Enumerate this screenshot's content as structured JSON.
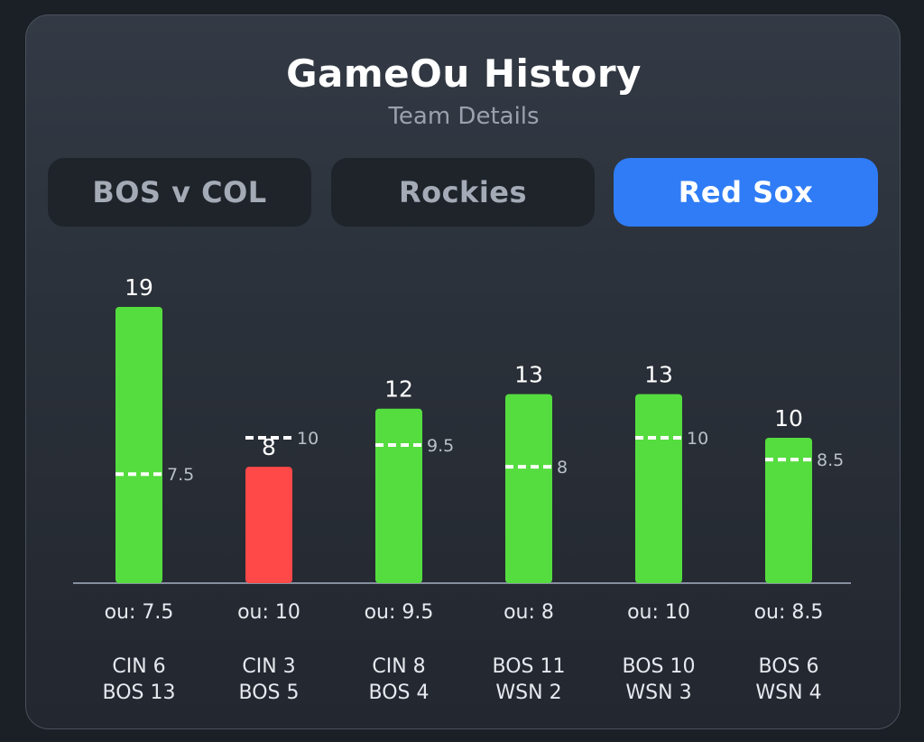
{
  "header": {
    "title": "GameOu History",
    "subtitle": "Team Details"
  },
  "tabs": [
    {
      "label": "BOS v COL",
      "active": false
    },
    {
      "label": "Rockies",
      "active": false
    },
    {
      "label": "Red Sox",
      "active": true
    }
  ],
  "colors": {
    "over": "#55dd3f",
    "under": "#ff4848",
    "active_tab": "#2f7cf6"
  },
  "chart_data": {
    "type": "bar",
    "categories": [
      "CIN 6 BOS 13",
      "CIN 3 BOS 5",
      "CIN 8 BOS 4",
      "BOS 11 WSN 2",
      "BOS 10 WSN 3",
      "BOS 6 WSN 4"
    ],
    "values": [
      19,
      8,
      12,
      13,
      13,
      10
    ],
    "ou_lines": [
      7.5,
      10,
      9.5,
      8,
      10,
      8.5
    ],
    "ou_labels": [
      "ou: 7.5",
      "ou: 10",
      "ou: 9.5",
      "ou: 8",
      "ou: 10",
      "ou: 8.5"
    ],
    "games": [
      [
        "CIN 6",
        "BOS 13"
      ],
      [
        "CIN 3",
        "BOS 5"
      ],
      [
        "CIN 8",
        "BOS 4"
      ],
      [
        "BOS 11",
        "WSN 2"
      ],
      [
        "BOS 10",
        "WSN 3"
      ],
      [
        "BOS 6",
        "WSN 4"
      ]
    ],
    "ylim": [
      0,
      19
    ],
    "grid": false
  }
}
